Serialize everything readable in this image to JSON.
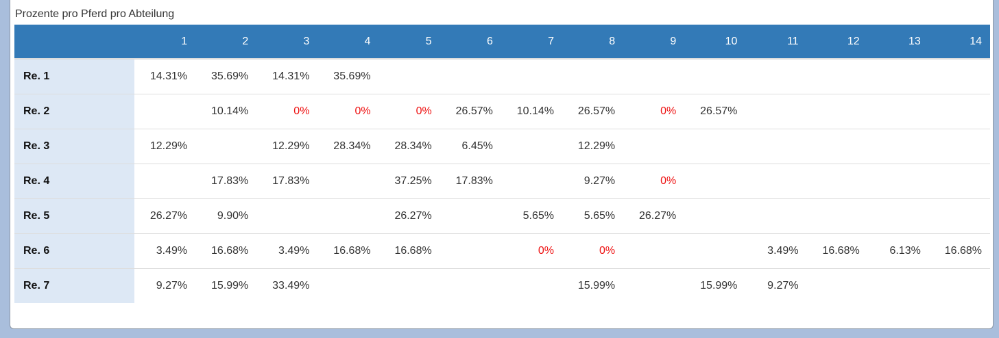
{
  "title": "Prozente pro Pferd pro Abteilung",
  "header_label": "",
  "columns": [
    "1",
    "2",
    "3",
    "4",
    "5",
    "6",
    "7",
    "8",
    "9",
    "10",
    "11",
    "12",
    "13",
    "14"
  ],
  "rows": [
    {
      "label": "Re. 1",
      "cells": [
        "14.31%",
        "35.69%",
        "14.31%",
        "35.69%",
        "",
        "",
        "",
        "",
        "",
        "",
        "",
        "",
        "",
        ""
      ]
    },
    {
      "label": "Re. 2",
      "cells": [
        "",
        "10.14%",
        "0%",
        "0%",
        "0%",
        "26.57%",
        "10.14%",
        "26.57%",
        "0%",
        "26.57%",
        "",
        "",
        "",
        ""
      ]
    },
    {
      "label": "Re. 3",
      "cells": [
        "12.29%",
        "",
        "12.29%",
        "28.34%",
        "28.34%",
        "6.45%",
        "",
        "12.29%",
        "",
        "",
        "",
        "",
        "",
        ""
      ]
    },
    {
      "label": "Re. 4",
      "cells": [
        "",
        "17.83%",
        "17.83%",
        "",
        "37.25%",
        "17.83%",
        "",
        "9.27%",
        "0%",
        "",
        "",
        "",
        "",
        ""
      ]
    },
    {
      "label": "Re. 5",
      "cells": [
        "26.27%",
        "9.90%",
        "",
        "",
        "26.27%",
        "",
        "5.65%",
        "5.65%",
        "26.27%",
        "",
        "",
        "",
        "",
        ""
      ]
    },
    {
      "label": "Re. 6",
      "cells": [
        "3.49%",
        "16.68%",
        "3.49%",
        "16.68%",
        "16.68%",
        "",
        "0%",
        "0%",
        "",
        "",
        "3.49%",
        "16.68%",
        "6.13%",
        "16.68%"
      ]
    },
    {
      "label": "Re. 7",
      "cells": [
        "9.27%",
        "15.99%",
        "33.49%",
        "",
        "",
        "",
        "",
        "15.99%",
        "",
        "15.99%",
        "9.27%",
        "",
        "",
        ""
      ]
    }
  ],
  "colors": {
    "header_bg": "#337ab7",
    "row_label_bg": "#dde8f5",
    "zero_value": "#ee1111",
    "page_bg": "#a9bedc"
  }
}
